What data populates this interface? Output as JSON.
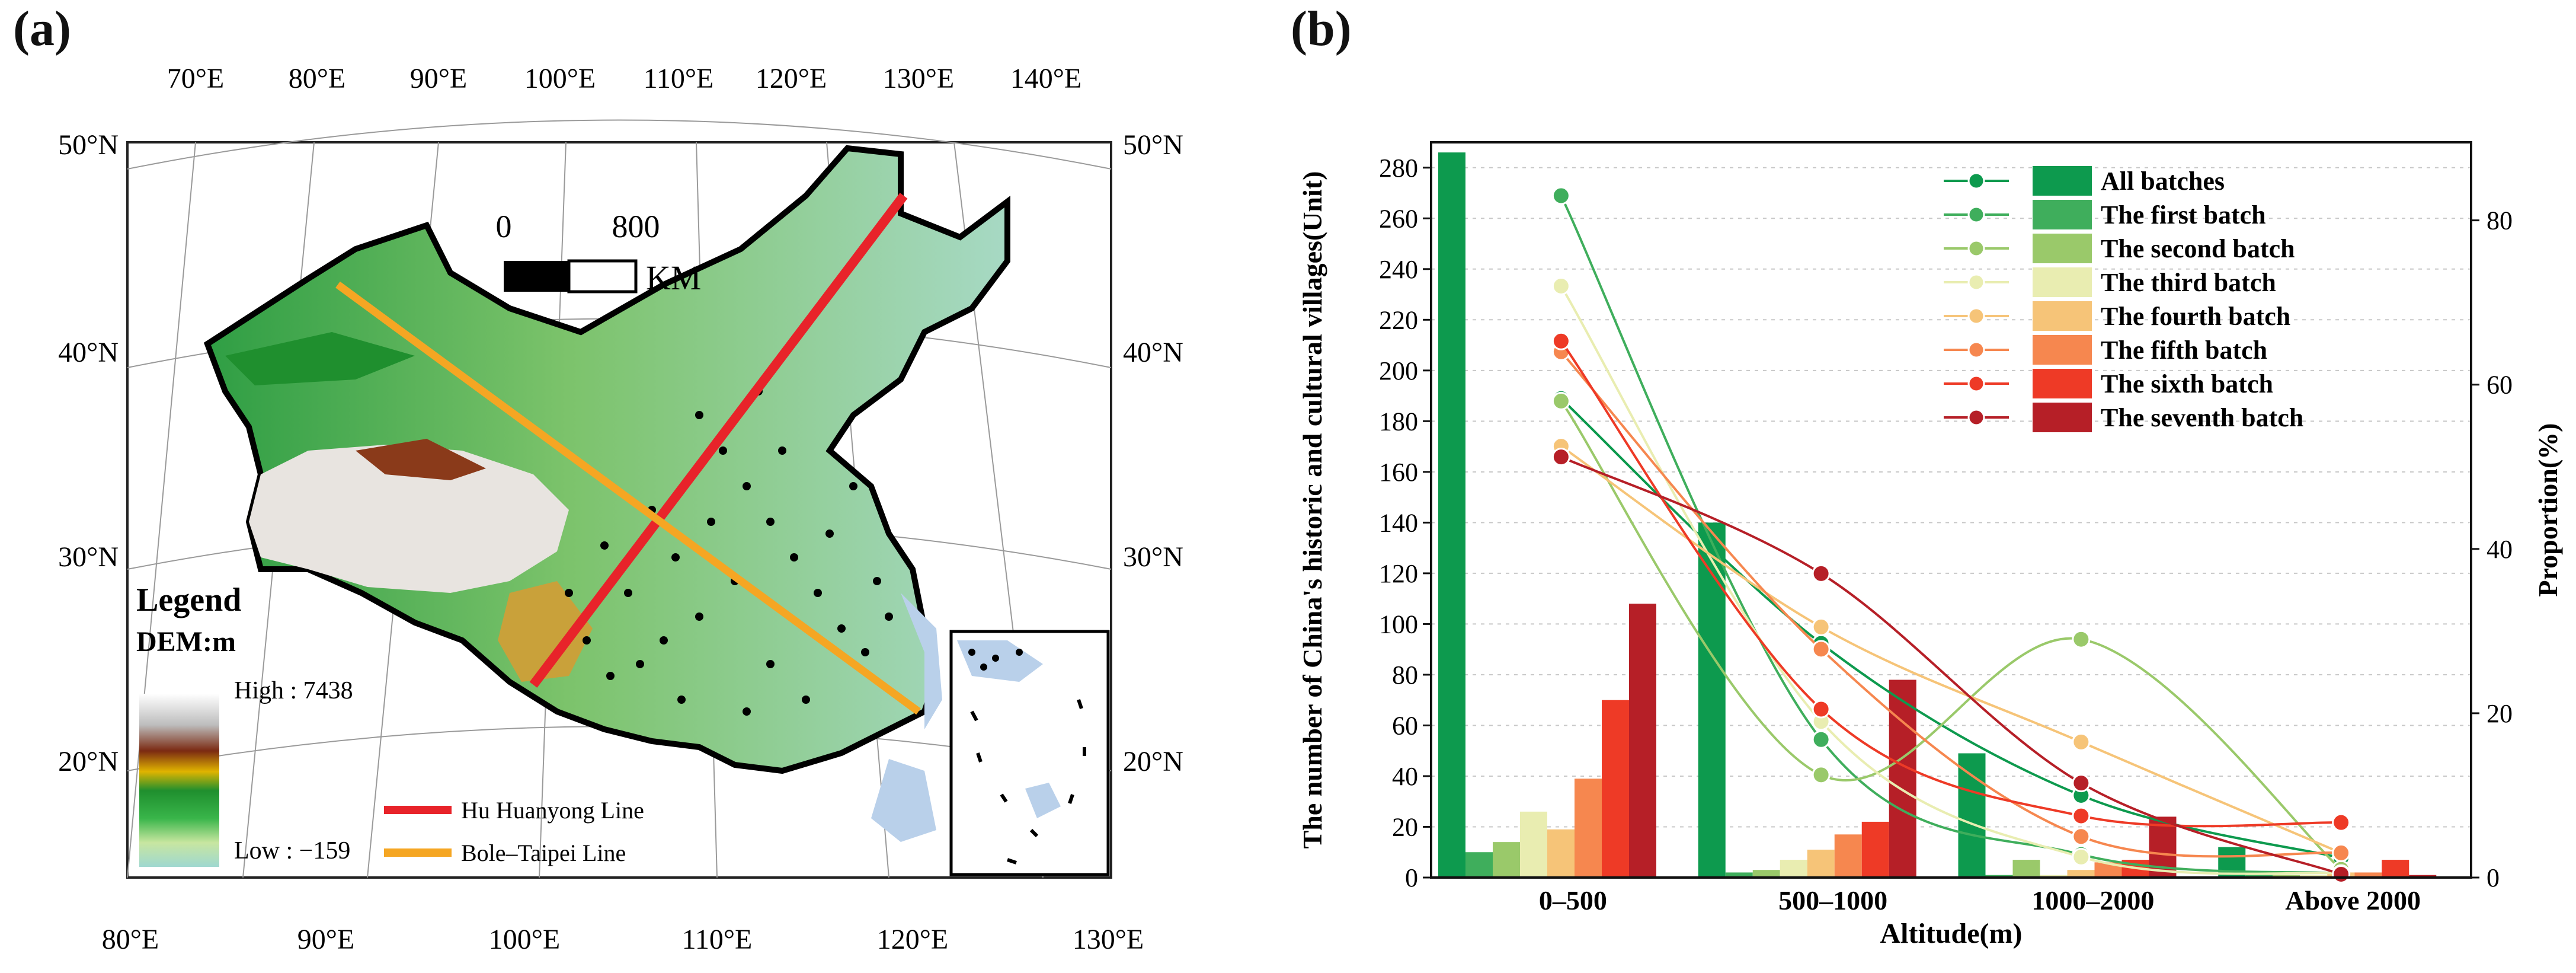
{
  "panels": {
    "a_label": "(a)",
    "b_label": "(b)"
  },
  "map": {
    "top_lon_labels": [
      "70°E",
      "80°E",
      "90°E",
      "100°E",
      "110°E",
      "120°E",
      "130°E",
      "140°E"
    ],
    "bottom_lon_labels": [
      "80°E",
      "90°E",
      "100°E",
      "110°E",
      "120°E",
      "130°E"
    ],
    "lat_labels": [
      "50°N",
      "40°N",
      "30°N",
      "20°N"
    ],
    "scale": {
      "zero": "0",
      "distance": "800",
      "unit": "KM"
    },
    "legend": {
      "title": "Legend",
      "dem_title": "DEM:m",
      "high": "High : 7438",
      "low": "Low : −159",
      "hu_line": "Hu Huanyong Line",
      "bole_line": "Bole–Taipei Line"
    },
    "colors": {
      "hu_line": "#e8232a",
      "bole_line": "#f5a623",
      "points": "#000000",
      "sea": "#b9d0ea"
    }
  },
  "chart_data": {
    "type": "bar",
    "categories": [
      "0–500",
      "500–1000",
      "1000–2000",
      "Above 2000"
    ],
    "xlabel": "Altitude(m)",
    "ylabel": "The number of China's historic and cultural villages(Unit)",
    "y2label": "Proportion(%)",
    "ylim": [
      0,
      290
    ],
    "yticks": [
      0,
      20,
      40,
      60,
      80,
      100,
      120,
      140,
      160,
      180,
      200,
      220,
      240,
      260,
      280
    ],
    "y2lim": [
      0,
      89.5
    ],
    "y2ticks": [
      0,
      20,
      40,
      60,
      80
    ],
    "grid": "horizontal dashed",
    "legend_position": "top-right",
    "series": [
      {
        "name": "All batches",
        "color": "#0d9a4e",
        "values": [
          286,
          140,
          49,
          12
        ],
        "proportion": [
          58.3,
          28.5,
          10.0,
          2.4
        ]
      },
      {
        "name": "The first batch",
        "color": "#3fae5c",
        "values": [
          10,
          2,
          1,
          1
        ],
        "proportion": [
          83.0,
          16.8,
          2.8,
          0.5
        ]
      },
      {
        "name": "The second batch",
        "color": "#9ac96a",
        "values": [
          14,
          3,
          7,
          1
        ],
        "proportion": [
          58.0,
          12.5,
          29.0,
          1.0
        ]
      },
      {
        "name": "The third batch",
        "color": "#e9edb1",
        "values": [
          26,
          7,
          1,
          1
        ],
        "proportion": [
          72.0,
          19.0,
          2.5,
          0.5
        ]
      },
      {
        "name": "The fourth batch",
        "color": "#f6c478",
        "values": [
          19,
          11,
          3,
          2
        ],
        "proportion": [
          52.5,
          30.5,
          16.5,
          3.0
        ]
      },
      {
        "name": "The fifth batch",
        "color": "#f6874f",
        "values": [
          39,
          17,
          6,
          2
        ],
        "proportion": [
          64.0,
          27.8,
          5.0,
          3.0
        ]
      },
      {
        "name": "The sixth batch",
        "color": "#ee3a26",
        "values": [
          70,
          22,
          7,
          7
        ],
        "proportion": [
          65.3,
          20.5,
          7.5,
          6.7
        ]
      },
      {
        "name": "The seventh batch",
        "color": "#b61f27",
        "values": [
          108,
          78,
          24,
          1
        ],
        "proportion": [
          51.2,
          37.0,
          11.5,
          0.4
        ]
      }
    ]
  }
}
